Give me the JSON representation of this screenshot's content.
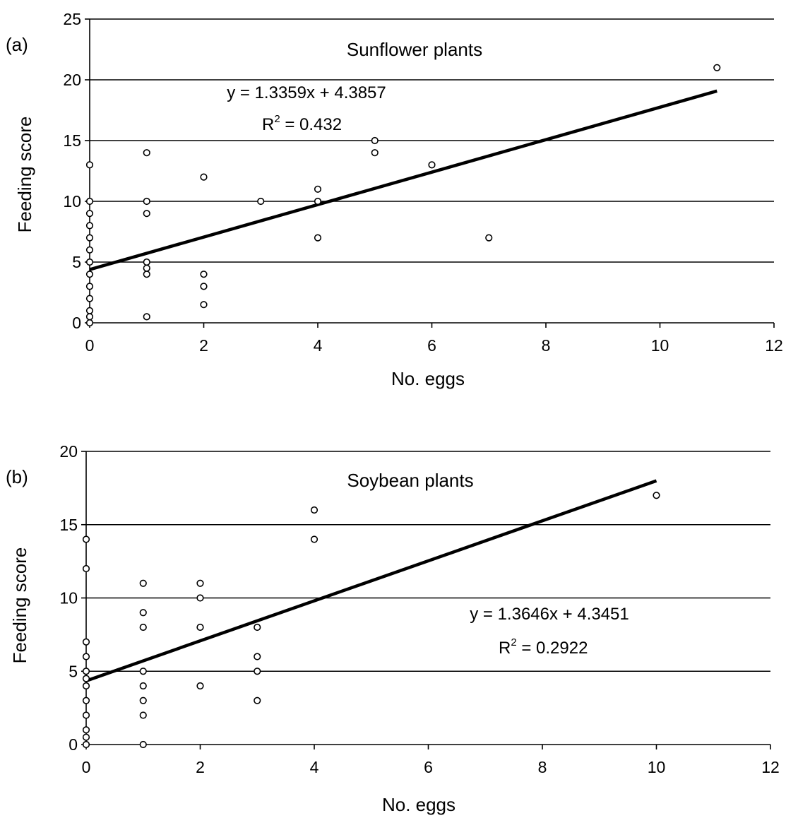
{
  "chart_data": [
    {
      "type": "scatter",
      "panel_label": "(a)",
      "title": "Sunflower plants",
      "xlabel": "No. eggs",
      "ylabel": "Feeding score",
      "xlim": [
        0,
        12
      ],
      "ylim": [
        0,
        25
      ],
      "x_ticks": [
        "0",
        "2",
        "4",
        "6",
        "8",
        "10",
        "12"
      ],
      "y_ticks": [
        "0",
        "5",
        "10",
        "15",
        "20",
        "25"
      ],
      "grid": "horizontal",
      "equation": "y = 1.3359x + 4.3857",
      "r2_prefix": "R",
      "r2_exp": "2",
      "r2_value": " = 0.432",
      "fit": {
        "slope": 1.3359,
        "intercept": 4.3857,
        "x_range": [
          0,
          11
        ]
      },
      "points": [
        [
          0,
          0
        ],
        [
          0,
          0.5
        ],
        [
          0,
          1
        ],
        [
          0,
          2
        ],
        [
          0,
          3
        ],
        [
          0,
          4
        ],
        [
          0,
          5
        ],
        [
          0,
          6
        ],
        [
          0,
          7
        ],
        [
          0,
          8
        ],
        [
          0,
          9
        ],
        [
          0,
          10
        ],
        [
          0,
          13
        ],
        [
          1,
          0.5
        ],
        [
          1,
          4
        ],
        [
          1,
          4.5
        ],
        [
          1,
          5
        ],
        [
          1,
          9
        ],
        [
          1,
          10
        ],
        [
          1,
          14
        ],
        [
          2,
          1.5
        ],
        [
          2,
          3
        ],
        [
          2,
          4
        ],
        [
          2,
          12
        ],
        [
          3,
          10
        ],
        [
          4,
          7
        ],
        [
          4,
          10
        ],
        [
          4,
          11
        ],
        [
          5,
          14
        ],
        [
          5,
          15
        ],
        [
          6,
          13
        ],
        [
          7,
          7
        ],
        [
          11,
          21
        ]
      ]
    },
    {
      "type": "scatter",
      "panel_label": "(b)",
      "title": "Soybean plants",
      "xlabel": "No. eggs",
      "ylabel": "Feeding score",
      "xlim": [
        0,
        12
      ],
      "ylim": [
        0,
        20
      ],
      "x_ticks": [
        "0",
        "2",
        "4",
        "6",
        "8",
        "10",
        "12"
      ],
      "y_ticks": [
        "0",
        "5",
        "10",
        "15",
        "20"
      ],
      "grid": "horizontal",
      "equation": "y = 1.3646x + 4.3451",
      "r2_prefix": "R",
      "r2_exp": "2",
      "r2_value": " = 0.2922",
      "fit": {
        "slope": 1.3646,
        "intercept": 4.3451,
        "x_range": [
          0,
          10
        ]
      },
      "points": [
        [
          0,
          0
        ],
        [
          0,
          0.5
        ],
        [
          0,
          1
        ],
        [
          0,
          2
        ],
        [
          0,
          3
        ],
        [
          0,
          4
        ],
        [
          0,
          4.5
        ],
        [
          0,
          5
        ],
        [
          0,
          6
        ],
        [
          0,
          7
        ],
        [
          0,
          12
        ],
        [
          0,
          14
        ],
        [
          1,
          0
        ],
        [
          1,
          2
        ],
        [
          1,
          3
        ],
        [
          1,
          4
        ],
        [
          1,
          5
        ],
        [
          1,
          8
        ],
        [
          1,
          9
        ],
        [
          1,
          11
        ],
        [
          2,
          4
        ],
        [
          2,
          8
        ],
        [
          2,
          10
        ],
        [
          2,
          11
        ],
        [
          3,
          3
        ],
        [
          3,
          5
        ],
        [
          3,
          6
        ],
        [
          3,
          8
        ],
        [
          4,
          14
        ],
        [
          4,
          16
        ],
        [
          10,
          17
        ]
      ]
    }
  ]
}
